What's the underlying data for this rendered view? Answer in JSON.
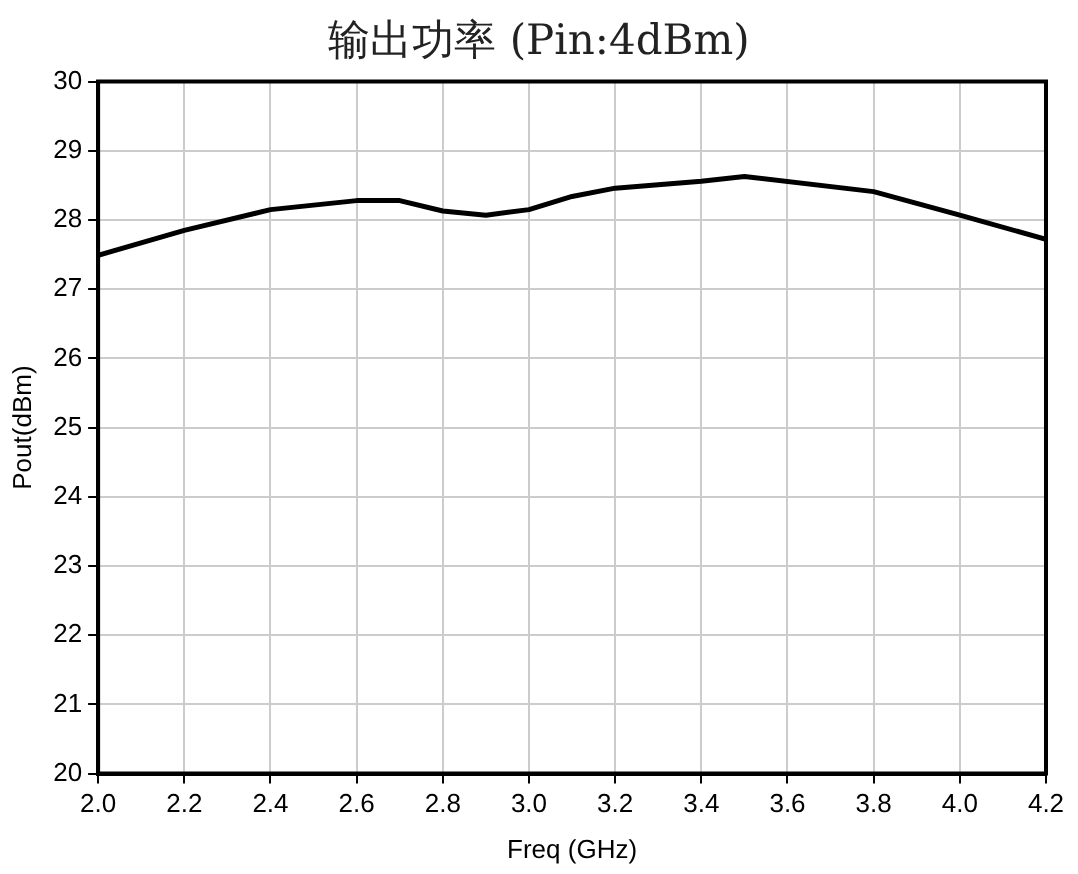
{
  "chart_data": {
    "type": "line",
    "title": "输出功率 (Pin:4dBm)",
    "xlabel": "Freq (GHz)",
    "ylabel": "Pout(dBm)",
    "x": [
      2.0,
      2.2,
      2.4,
      2.6,
      2.7,
      2.8,
      2.9,
      3.0,
      3.1,
      3.2,
      3.4,
      3.5,
      3.8,
      4.0,
      4.2
    ],
    "series": [
      {
        "color": "#000000",
        "values": [
          27.49,
          27.85,
          28.15,
          28.28,
          28.28,
          28.13,
          28.07,
          28.15,
          28.34,
          28.46,
          28.56,
          28.63,
          28.41,
          28.07,
          27.72
        ]
      }
    ],
    "xlim": [
      2.0,
      4.2
    ],
    "xticks": [
      {
        "value": 2.0,
        "label": "2.0"
      },
      2.2,
      2.4,
      2.6,
      2.8,
      {
        "value": 3.0,
        "label": "3.0"
      },
      3.2,
      3.4,
      3.6,
      3.8,
      {
        "value": 4.0,
        "label": "4.0"
      },
      4.2
    ],
    "ylim": [
      20,
      30
    ],
    "yticks": [
      20,
      21,
      22,
      23,
      24,
      25,
      26,
      27,
      28,
      29,
      30
    ],
    "grid": true,
    "legend": false,
    "marker": "none",
    "line_style": "solid"
  }
}
